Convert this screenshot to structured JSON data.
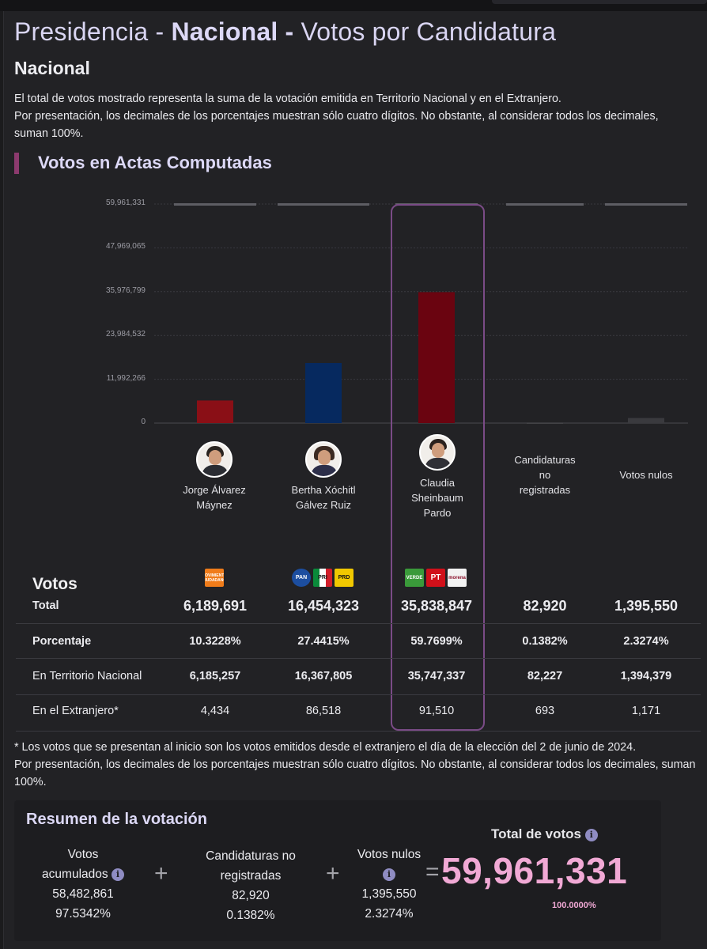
{
  "header": {
    "title_pre": "Presidencia - ",
    "title_bold": "Nacional -",
    "title_post": " Votos por Candidatura",
    "subtitle": "Nacional",
    "description_1": "El total de votos mostrado representa la suma de la votación emitida en Territorio Nacional y en el Extranjero.",
    "description_2": "Por presentación, los decimales de los porcentajes muestran sólo cuatro dígitos. No obstante, al considerar todos los decimales, suman 100%."
  },
  "section": {
    "title": "Votos en Actas Computadas"
  },
  "chart_data": {
    "type": "bar",
    "categories": [
      "Jorge Álvarez Máynez",
      "Bertha Xóchitl Gálvez Ruiz",
      "Claudia Sheinbaum Pardo",
      "Candidaturas no registradas",
      "Votos nulos"
    ],
    "values": [
      6189691,
      16454323,
      35838847,
      82920,
      1395550
    ],
    "colors": [
      "#8a0f16",
      "#06295f",
      "#6a0410",
      "#555559",
      "#3a3a3e"
    ],
    "ylim": [
      0,
      59961331
    ],
    "ytick_labels": [
      "59,961,331",
      "47,969,065",
      "35,976,799",
      "23,984,532",
      "11,992,266",
      "0"
    ],
    "ytick_values": [
      59961331,
      47969065,
      35976799,
      23984532,
      11992266,
      0
    ],
    "grid": true,
    "highlight_index": 2
  },
  "candidates": [
    {
      "name_l1": "Jorge Álvarez",
      "name_l2": "Máynez",
      "name_l3": "",
      "photo": "avatar-icon",
      "hair": "#2a2420",
      "suit": "#2b2d33"
    },
    {
      "name_l1": "Bertha Xóchitl",
      "name_l2": "Gálvez Ruiz",
      "name_l3": "",
      "photo": "avatar-icon",
      "hair": "#3b2a22",
      "suit": "#2d2f4a"
    },
    {
      "name_l1": "Claudia",
      "name_l2": "Sheinbaum",
      "name_l3": "Pardo",
      "photo": "avatar-icon",
      "hair": "#2a211d",
      "suit": "#303036"
    },
    {
      "name_l1": "Candidaturas",
      "name_l2": "no",
      "name_l3": "registradas"
    },
    {
      "name_l1": "Votos nulos",
      "name_l2": "",
      "name_l3": ""
    }
  ],
  "party_logos": {
    "mc": [
      {
        "text": "MOVIMIENTO CIUDADANO",
        "color": "#f07c1a"
      }
    ],
    "fcm": [
      {
        "text": "PAN",
        "color": "#1c4ea0"
      },
      {
        "text": "PRI",
        "color": "#d21f2b"
      },
      {
        "text": "PRD",
        "color": "#f1c800"
      }
    ],
    "shh": [
      {
        "text": "VERDE",
        "color": "#3a9a3a"
      },
      {
        "text": "PT",
        "color": "#d1101a"
      },
      {
        "text": "morena",
        "color": "#f2f2f2"
      }
    ]
  },
  "table": {
    "votos_label": "Votos",
    "total_label": "Total",
    "total": [
      "6,189,691",
      "16,454,323",
      "35,838,847",
      "82,920",
      "1,395,550"
    ],
    "pct_label": "Porcentaje",
    "pct": [
      "10.3228%",
      "27.4415%",
      "59.7699%",
      "0.1382%",
      "2.3274%"
    ],
    "nacional_label": "En Territorio Nacional",
    "nacional": [
      "6,185,257",
      "16,367,805",
      "35,747,337",
      "82,227",
      "1,394,379"
    ],
    "extranjero_label": "En el Extranjero*",
    "extranjero": [
      "4,434",
      "86,518",
      "91,510",
      "693",
      "1,171"
    ]
  },
  "footnote": {
    "line1": "* Los votos que se presentan al inicio son los votos emitidos desde el extranjero el día de la elección del 2 de junio de 2024.",
    "line2": "Por presentación, los decimales de los porcentajes muestran sólo cuatro dígitos. No obstante, al considerar todos los decimales, suman 100%."
  },
  "summary": {
    "title": "Resumen de la votación",
    "acumulados_l1": "Votos",
    "acumulados_l2": "acumulados",
    "acumulados_num": "58,482,861",
    "acumulados_pct": "97.5342%",
    "noreg_l1": "Candidaturas no",
    "noreg_l2": "registradas",
    "noreg_num": "82,920",
    "noreg_pct": "0.1382%",
    "nulos_l1": "Votos nulos",
    "nulos_num": "1,395,550",
    "nulos_pct": "2.3274%",
    "plus": "+",
    "equals": "=",
    "total_title": "Total de votos",
    "total_num": "59,961,331",
    "total_pct": "100.0000%",
    "info_glyph": "i"
  }
}
